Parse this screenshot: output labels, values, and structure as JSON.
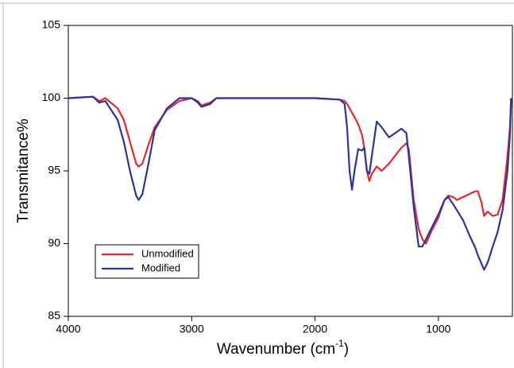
{
  "chart_data": {
    "type": "line",
    "xlabel_parts": [
      "Wavenumber (cm",
      "-1",
      ")"
    ],
    "ylabel": "Transmitance%",
    "x": [
      4000,
      3800,
      3750,
      3700,
      3600,
      3550,
      3500,
      3450,
      3430,
      3400,
      3350,
      3300,
      3200,
      3100,
      3000,
      2950,
      2920,
      2850,
      2800,
      2500,
      2000,
      1800,
      1760,
      1740,
      1720,
      1700,
      1680,
      1650,
      1620,
      1600,
      1580,
      1560,
      1540,
      1500,
      1460,
      1400,
      1300,
      1260,
      1240,
      1200,
      1160,
      1130,
      1100,
      1060,
      1000,
      950,
      920,
      880,
      850,
      800,
      750,
      700,
      680,
      650,
      630,
      600,
      560,
      520,
      480,
      440,
      420,
      410
    ],
    "series": [
      {
        "name": "Unmodified",
        "color": "#e8262e",
        "values": [
          100,
          100.1,
          99.8,
          100,
          99.3,
          98.5,
          97,
          95.5,
          95.3,
          95.5,
          96.8,
          98,
          99.2,
          99.8,
          100,
          99.8,
          99.5,
          99.7,
          100,
          100,
          100,
          99.9,
          99.8,
          99.6,
          99.3,
          99.0,
          98.7,
          98.2,
          97.5,
          96.5,
          95,
          94.3,
          94.8,
          95.3,
          95.0,
          95.5,
          96.6,
          96.9,
          96.5,
          93,
          91,
          90.3,
          90.0,
          90.8,
          91.8,
          93,
          93.3,
          93.2,
          93.0,
          93.2,
          93.4,
          93.6,
          93.6,
          92.8,
          91.9,
          92.2,
          91.9,
          92.0,
          93,
          96,
          98,
          100
        ]
      },
      {
        "name": "Modified",
        "color": "#2b34a0",
        "values": [
          100,
          100.1,
          99.7,
          99.8,
          98.5,
          97,
          95,
          93.3,
          93,
          93.4,
          95.5,
          97.8,
          99.3,
          100,
          100,
          99.7,
          99.4,
          99.6,
          100,
          100,
          100,
          99.9,
          99.6,
          98.0,
          95,
          93.7,
          95,
          96.5,
          96.4,
          96.6,
          95,
          94.8,
          96,
          98.4,
          98.0,
          97.3,
          97.9,
          97.6,
          96,
          92.5,
          89.8,
          89.8,
          90.3,
          91,
          92,
          93,
          93.2,
          92.7,
          92.3,
          91.6,
          90.6,
          89.7,
          89.2,
          88.6,
          88.2,
          88.7,
          89.8,
          90.8,
          92.3,
          95,
          97.5,
          100
        ]
      }
    ],
    "xlim": [
      4000,
      400
    ],
    "xticks": [
      4000,
      3000,
      2000,
      1000
    ],
    "ylim": [
      85,
      105
    ],
    "yticks": [
      85,
      90,
      95,
      100,
      105
    ],
    "legend": "lower left"
  }
}
